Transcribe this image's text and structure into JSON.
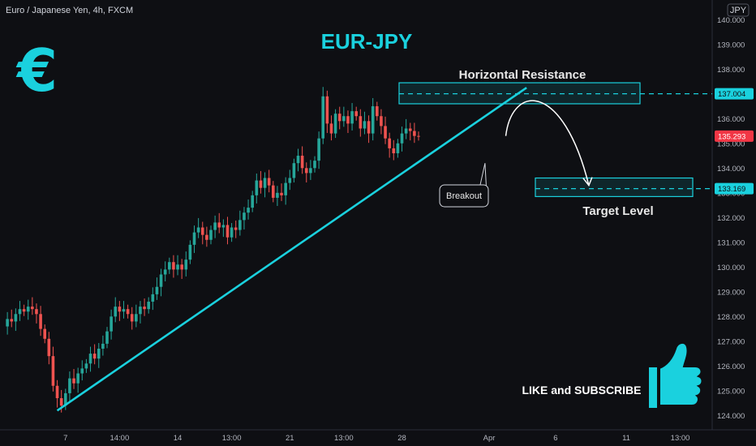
{
  "header": {
    "symbol_label": "Euro / Japanese Yen, 4h, FXCM",
    "currency_badge": "JPY"
  },
  "title": "EUR-JPY",
  "logo_glyph": "€",
  "colors": {
    "accent": "#1ad1de",
    "bull": "#26a69a",
    "bear": "#ef5350",
    "background": "#0e0f13",
    "current_price_tag": "#f23645",
    "level_tag": "#1ad1de"
  },
  "icons": {
    "logo": "euro-icon",
    "cta": "thumbs-up-icon"
  },
  "annotations": {
    "resistance_label": "Horizontal Resistance",
    "target_label": "Target Level",
    "breakout_label": "Breakout",
    "cta_label": "LIKE and SUBSCRIBE"
  },
  "chart_data": {
    "type": "candlestick",
    "yaxis": {
      "side": "right",
      "ylim": [
        123.75,
        140.5
      ],
      "ticks": [
        "124.000",
        "125.000",
        "126.000",
        "127.000",
        "128.000",
        "129.000",
        "130.000",
        "131.000",
        "132.000",
        "133.000",
        "134.000",
        "135.000",
        "136.000",
        "137.000",
        "138.000",
        "139.000",
        "140.000"
      ]
    },
    "xaxis": {
      "ticks": [
        {
          "label": "7",
          "t": 15
        },
        {
          "label": "14:00",
          "t": 28
        },
        {
          "label": "14",
          "t": 42
        },
        {
          "label": "13:00",
          "t": 55
        },
        {
          "label": "21",
          "t": 69
        },
        {
          "label": "13:00",
          "t": 82
        },
        {
          "label": "28",
          "t": 96
        },
        {
          "label": "Apr",
          "t": 117
        },
        {
          "label": "6",
          "t": 133
        },
        {
          "label": "11",
          "t": 150
        },
        {
          "label": "13:00",
          "t": 163
        }
      ]
    },
    "levels": {
      "resistance": "137.004",
      "target": "133.169",
      "current_price": "135.293"
    },
    "resistance_zone": [
      136.6,
      137.45
    ],
    "target_zone": [
      132.85,
      133.6
    ],
    "trendline": {
      "from": {
        "t": 13,
        "price": 124.2
      },
      "to": {
        "t": 126,
        "price": 137.25
      }
    },
    "projection": {
      "from": {
        "t": 121,
        "price": 135.3
      },
      "peak": {
        "t": 127,
        "price": 136.9
      },
      "to": {
        "t": 141,
        "price": 133.3
      }
    },
    "breakout_pointer": {
      "t": 116,
      "price": 134.2
    },
    "closes": [
      127.6,
      127.9,
      127.8,
      128.1,
      128.3,
      128.2,
      128.4,
      128.3,
      128.1,
      127.5,
      127.1,
      126.4,
      125.2,
      124.7,
      124.4,
      124.9,
      125.5,
      125.3,
      125.7,
      125.9,
      126.1,
      126.5,
      126.3,
      126.7,
      126.9,
      127.4,
      128.0,
      128.4,
      128.2,
      128.3,
      128.1,
      127.8,
      128.1,
      128.4,
      128.3,
      128.6,
      128.9,
      129.2,
      129.7,
      129.9,
      130.2,
      129.9,
      130.1,
      129.9,
      130.3,
      130.9,
      131.4,
      131.6,
      131.3,
      131.1,
      131.5,
      131.8,
      131.6,
      131.7,
      131.2,
      131.6,
      131.5,
      131.9,
      132.2,
      132.4,
      132.9,
      133.5,
      133.2,
      133.6,
      133.3,
      132.8,
      133.0,
      132.9,
      133.4,
      133.6,
      134.2,
      134.5,
      134.0,
      133.8,
      134.0,
      134.3,
      135.2,
      136.9,
      135.8,
      135.4,
      136.2,
      135.9,
      136.1,
      135.8,
      136.3,
      136.1,
      135.6,
      135.9,
      135.4,
      136.5,
      136.1,
      135.7,
      135.2,
      134.8,
      134.6,
      135.0,
      135.4,
      135.6,
      135.5,
      135.3,
      135.293
    ]
  }
}
